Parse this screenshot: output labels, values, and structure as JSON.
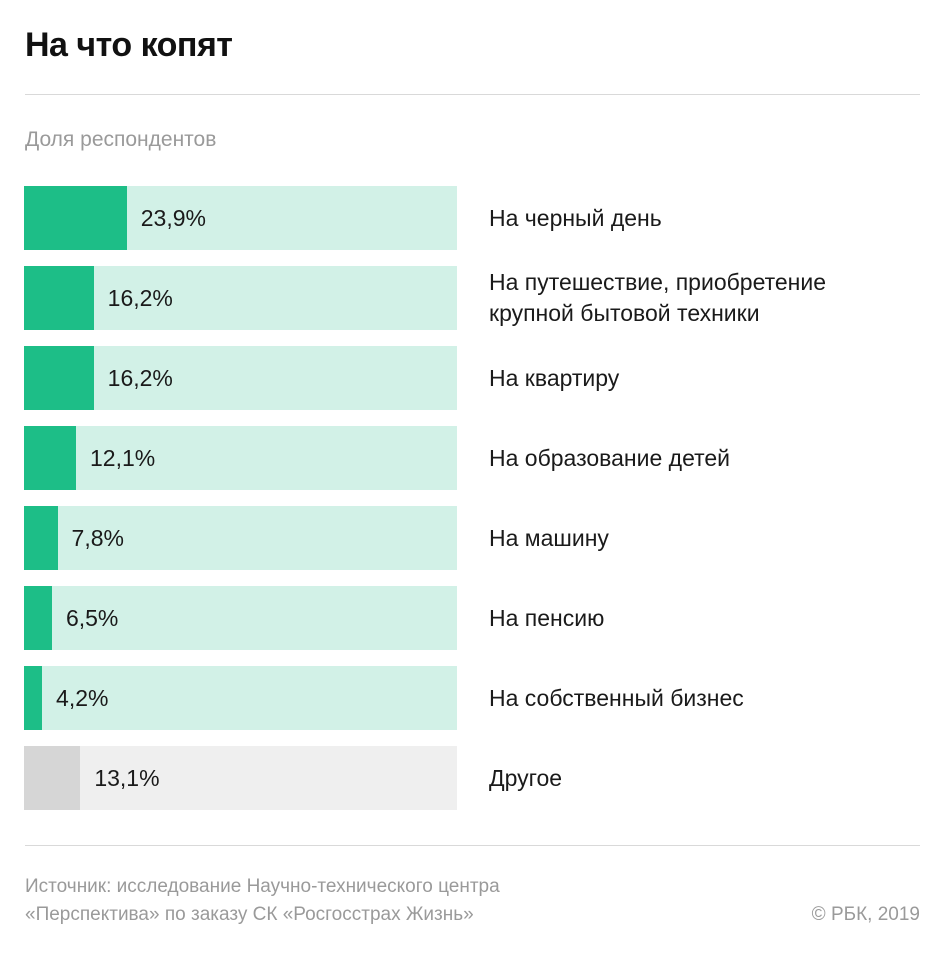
{
  "header": {
    "title": "На что копят",
    "subtitle": "Доля респондентов"
  },
  "colors": {
    "fill": "#1dbe87",
    "track": "#d2f1e7",
    "other_fill": "#d6d6d6",
    "other_track": "#efefef"
  },
  "chart_data": {
    "type": "bar",
    "orientation": "horizontal",
    "title": "На что копят",
    "subtitle": "Доля респондентов",
    "unit": "%",
    "xlim": [
      0,
      100
    ],
    "categories": [
      "На черный день",
      "На путешествие, приобретение крупной бытовой техники",
      "На квартиру",
      "На образование детей",
      "На машину",
      "На пенсию",
      "На собственный бизнес",
      "Другое"
    ],
    "values": [
      23.9,
      16.2,
      16.2,
      12.1,
      7.8,
      6.5,
      4.2,
      13.1
    ],
    "value_labels": [
      "23,9%",
      "16,2%",
      "16,2%",
      "12,1%",
      "7,8%",
      "6,5%",
      "4,2%",
      "13,1%"
    ],
    "highlight": [
      false,
      false,
      false,
      false,
      false,
      false,
      false,
      true
    ]
  },
  "footer": {
    "source_line1": "Источник: исследование Научно-технического центра",
    "source_line2": "«Перспектива» по заказу СК «Росгосстрах Жизнь»",
    "copyright": "© РБК, 2019"
  }
}
